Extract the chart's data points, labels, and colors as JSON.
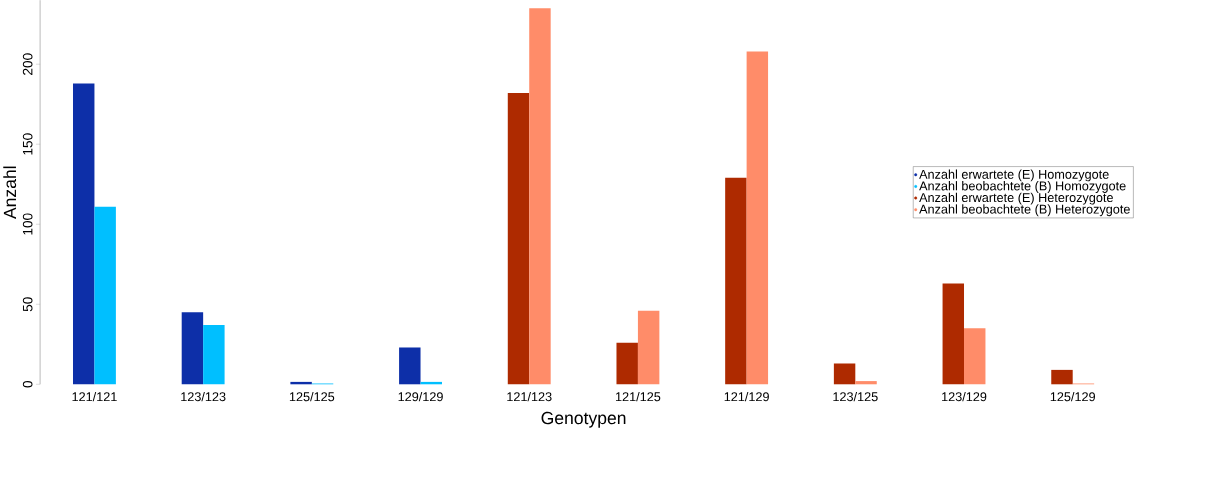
{
  "chart_data": {
    "type": "bar",
    "xlabel": "Genotypen",
    "ylabel": "Anzahl",
    "categories": [
      "121/121",
      "123/123",
      "125/125",
      "129/129",
      "121/123",
      "121/125",
      "121/129",
      "123/125",
      "123/129",
      "125/129"
    ],
    "series": [
      {
        "name": "Anzahl erwartete (E) Homozygote",
        "color": "#0d2fa8",
        "values": [
          188,
          45,
          1.5,
          23,
          null,
          null,
          null,
          null,
          null,
          null
        ]
      },
      {
        "name": "Anzahl beobachtete (B) Homozygote",
        "color": "#00bfff",
        "values": [
          111,
          37,
          0.5,
          1.5,
          null,
          null,
          null,
          null,
          null,
          null
        ]
      },
      {
        "name": "Anzahl erwartete (E) Heterozygote",
        "color": "#ae2a00",
        "values": [
          null,
          null,
          null,
          null,
          182,
          26,
          129,
          13,
          63,
          9
        ]
      },
      {
        "name": "Anzahl beobachtete (B) Heterozygote",
        "color": "#ff8c69",
        "values": [
          null,
          null,
          null,
          null,
          235,
          46,
          208,
          2,
          35,
          0.5
        ]
      }
    ],
    "ylim": [
      0,
      240
    ],
    "yticks": [
      0,
      50,
      100,
      150,
      200
    ],
    "grid": false,
    "legend": "right"
  }
}
